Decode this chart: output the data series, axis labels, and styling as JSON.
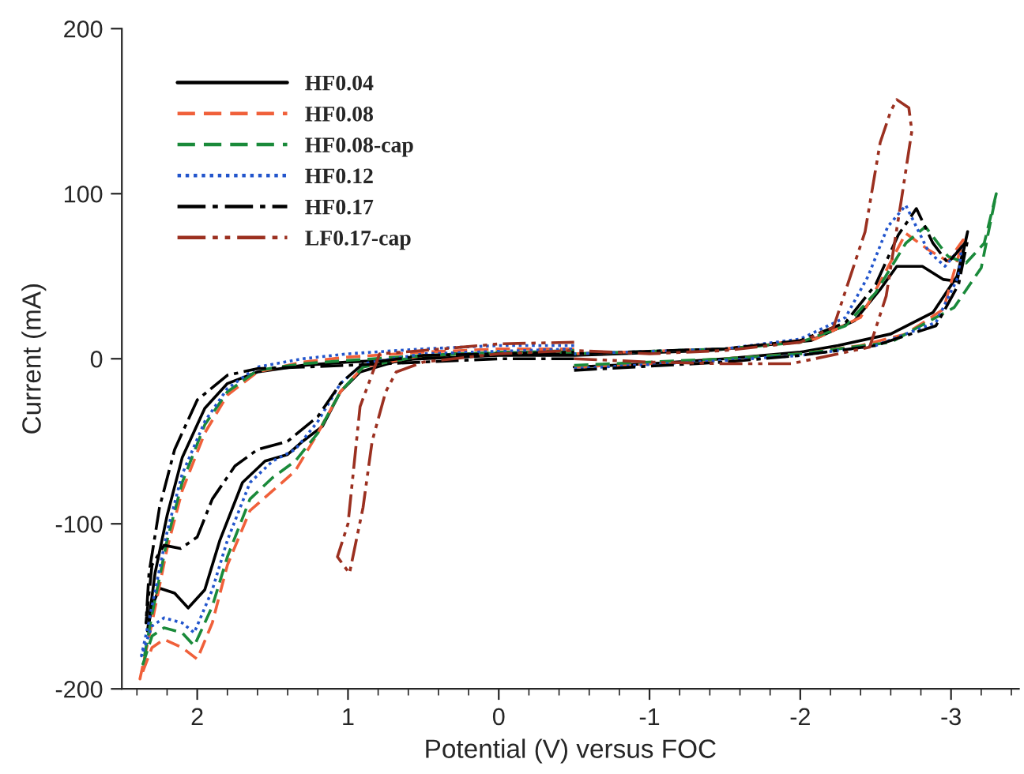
{
  "chart_data": {
    "type": "line",
    "xlabel": "Potential (V) versus FOC",
    "ylabel": "Current (mA)",
    "xlim": [
      2.5,
      -3.45
    ],
    "ylim": [
      -200,
      200
    ],
    "xticks": [
      2,
      1,
      0,
      -1,
      -2,
      -3
    ],
    "yticks": [
      -200,
      -100,
      0,
      100,
      200
    ],
    "grid": false,
    "legend": "top left",
    "marker": "none",
    "series": [
      {
        "name": "HF0.04",
        "color": "#000000",
        "line_style": "solid",
        "x": [
          -0.5,
          0,
          0.5,
          1.0,
          1.3,
          1.6,
          1.8,
          1.95,
          2.1,
          2.2,
          2.28,
          2.33,
          2.3,
          2.25,
          2.15,
          2.06,
          1.95,
          1.85,
          1.7,
          1.55,
          1.4,
          1.3,
          1.17,
          1.05,
          0.92,
          0.7,
          0.3,
          -0.5,
          null,
          -0.5,
          -1.0,
          -1.5,
          -2.0,
          -2.25,
          -2.6,
          -2.88,
          -3.04,
          -3.11,
          -3.04,
          -2.95,
          -2.81,
          -2.64,
          -2.53,
          -2.36,
          -2.07,
          -1.41,
          -0.5
        ],
        "values": [
          2,
          2,
          0,
          -2,
          -4,
          -8,
          -15,
          -30,
          -60,
          -95,
          -130,
          -165,
          -150,
          -139,
          -142,
          -151,
          -140,
          -110,
          -75,
          -62,
          -58,
          -50,
          -41,
          -20,
          -8,
          -2,
          3,
          3,
          null,
          -5,
          -3,
          0,
          4,
          8,
          15,
          28,
          50,
          77,
          47,
          48,
          56,
          56,
          42,
          23,
          11,
          5,
          2
        ]
      },
      {
        "name": "HF0.08",
        "color": "#f0603a",
        "line_style": "dashed",
        "x": [
          -0.5,
          0,
          0.5,
          1.0,
          1.3,
          1.6,
          1.8,
          1.95,
          2.1,
          2.2,
          2.3,
          2.38,
          2.3,
          2.22,
          2.1,
          2.0,
          1.9,
          1.8,
          1.65,
          1.5,
          1.35,
          1.2,
          1.05,
          0.9,
          0.5,
          -0.5,
          null,
          -0.5,
          -1.0,
          -1.5,
          -2.0,
          -2.4,
          -2.7,
          -2.95,
          -3.08,
          -2.98,
          -2.85,
          -2.7,
          -2.55,
          -2.4,
          -2.1,
          -1.5,
          -0.5
        ],
        "values": [
          6,
          6,
          4,
          1,
          -2,
          -8,
          -22,
          -45,
          -80,
          -115,
          -160,
          -194,
          -175,
          -170,
          -175,
          -182,
          -160,
          -125,
          -92,
          -80,
          -68,
          -45,
          -20,
          -5,
          2,
          5,
          null,
          -5,
          -3,
          0,
          3,
          8,
          15,
          30,
          72,
          59,
          66,
          76,
          50,
          25,
          12,
          6,
          3
        ]
      },
      {
        "name": "HF0.08-cap",
        "color": "#1a8a3a",
        "line_style": "dashed",
        "x": [
          -0.5,
          0,
          0.5,
          1.0,
          1.3,
          1.6,
          1.8,
          1.95,
          2.1,
          2.2,
          2.3,
          2.36,
          2.3,
          2.22,
          2.1,
          2.02,
          1.9,
          1.8,
          1.65,
          1.5,
          1.35,
          1.2,
          1.05,
          0.9,
          0.5,
          -0.5,
          null,
          -0.5,
          -1.5,
          -2.0,
          -2.6,
          -3.02,
          -3.2,
          -3.3,
          -3.22,
          -3.1,
          -2.98,
          -2.83,
          -2.7,
          -2.5,
          -2.3,
          -2.0,
          -1.5,
          -0.5
        ],
        "values": [
          4,
          4,
          2,
          -1,
          -3,
          -7,
          -20,
          -40,
          -75,
          -110,
          -155,
          -185,
          -168,
          -163,
          -166,
          -174,
          -150,
          -120,
          -85,
          -72,
          -62,
          -45,
          -20,
          -5,
          2,
          5,
          null,
          -4,
          0,
          3,
          10,
          31,
          55,
          100,
          70,
          58,
          62,
          80,
          70,
          40,
          20,
          10,
          6,
          3
        ]
      },
      {
        "name": "HF0.12",
        "color": "#2255cc",
        "line_style": "dotted",
        "x": [
          -0.5,
          0,
          0.5,
          1.0,
          1.3,
          1.6,
          1.8,
          1.95,
          2.1,
          2.2,
          2.3,
          2.37,
          2.3,
          2.22,
          2.1,
          2.02,
          1.9,
          1.8,
          1.65,
          1.5,
          1.35,
          1.2,
          1.05,
          0.9,
          0.5,
          -0.5,
          null,
          -0.5,
          -1.5,
          -2.0,
          -2.5,
          -2.9,
          -3.05,
          -3.07,
          -2.96,
          -2.85,
          -2.7,
          -2.58,
          -2.45,
          -2.3,
          -2.0,
          -1.5,
          -0.5
        ],
        "values": [
          8,
          8,
          6,
          3,
          0,
          -5,
          -18,
          -38,
          -70,
          -105,
          -150,
          -180,
          -162,
          -157,
          -160,
          -166,
          -140,
          -110,
          -75,
          -62,
          -55,
          -38,
          -15,
          -3,
          3,
          6,
          null,
          -6,
          -1,
          2,
          8,
          22,
          50,
          68,
          56,
          65,
          93,
          80,
          50,
          25,
          12,
          6,
          3
        ]
      },
      {
        "name": "HF0.17",
        "color": "#000000",
        "line_style": "dashdot",
        "x": [
          -0.5,
          0,
          0.5,
          1.0,
          1.3,
          1.6,
          1.8,
          2.0,
          2.15,
          2.25,
          2.32,
          2.34,
          2.3,
          2.22,
          2.11,
          2.0,
          1.9,
          1.75,
          1.6,
          1.4,
          1.2,
          1.05,
          0.9,
          0.5,
          -0.5,
          null,
          -0.5,
          -1.5,
          -2.0,
          -2.5,
          -2.9,
          -3.05,
          -3.11,
          -2.98,
          -2.88,
          -2.77,
          -2.65,
          -2.5,
          -2.3,
          -2.0,
          -1.5,
          -0.5
        ],
        "values": [
          0,
          0,
          -2,
          -4,
          -5,
          -6,
          -10,
          -25,
          -55,
          -90,
          -130,
          -160,
          -125,
          -113,
          -115,
          -108,
          -85,
          -65,
          -55,
          -50,
          -35,
          -15,
          -3,
          2,
          4,
          null,
          -7,
          -2,
          2,
          8,
          20,
          45,
          72,
          58,
          70,
          91,
          75,
          45,
          22,
          11,
          6,
          3
        ]
      },
      {
        "name": "LF0.17-cap",
        "color": "#9b3020",
        "line_style": "dashdotdot",
        "x": [
          -0.5,
          0,
          0.5,
          0.79,
          0.92,
          1.0,
          1.07,
          0.99,
          0.9,
          0.84,
          0.75,
          0.68,
          0.5,
          0,
          -0.5,
          null,
          -0.5,
          -1.0,
          -1.5,
          -1.94,
          -2.46,
          -2.57,
          -2.67,
          -2.74,
          -2.72,
          -2.64,
          -2.6,
          -2.53,
          -2.43,
          -2.22,
          -2.0,
          -1.5,
          -1.0,
          -0.5
        ],
        "values": [
          10,
          9,
          5,
          3,
          -29,
          -100,
          -120,
          -130,
          -90,
          -50,
          -20,
          -8,
          -2,
          3,
          5,
          null,
          0,
          -2,
          -3,
          -3,
          7,
          38,
          96,
          138,
          152,
          157,
          150,
          131,
          77,
          19,
          10,
          5,
          3,
          5
        ]
      }
    ]
  }
}
